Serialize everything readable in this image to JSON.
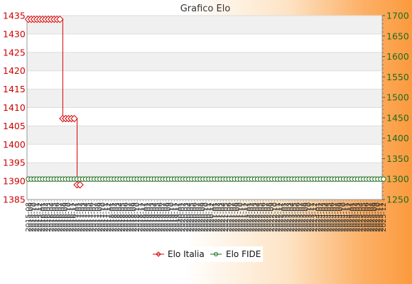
{
  "chart_data": {
    "type": "line",
    "title": "Grafico Elo",
    "x_tick_labels": [
      "2015-08",
      "2015-09",
      "2015-10",
      "2015-11",
      "2015-12",
      "2016-01",
      "2016-02",
      "2016-03",
      "2016-04",
      "2016-05",
      "2016-06",
      "2016-07",
      "2016-08",
      "2016-09",
      "2016-10",
      "2016-11",
      "2016-12",
      "2017-01",
      "2017-02",
      "2017-03",
      "2017-04",
      "2017-05",
      "2017-06",
      "2017-07",
      "2017-08",
      "2017-09",
      "2017-10",
      "2017-11",
      "2017-12",
      "2018-01",
      "2018-02",
      "2018-03",
      "2018-04",
      "2018-05",
      "2018-06",
      "2018-07",
      "2018-08",
      "2018-09",
      "2018-10",
      "2018-11",
      "2018-12",
      "2019-01",
      "2019-02",
      "2019-03",
      "2019-04",
      "2019-05",
      "2019-06",
      "2019-07",
      "2019-08",
      "2019-09",
      "2019-10",
      "2019-11",
      "2019-12",
      "2020-01",
      "2020-02",
      "2020-03",
      "2020-04",
      "2020-05",
      "2020-06",
      "2020-07",
      "2020-08",
      "2020-09",
      "2020-10",
      "2020-11",
      "2020-12",
      "2021-01",
      "2021-02",
      "2021-03",
      "2021-04",
      "2021-05",
      "2021-06",
      "2021-07",
      "2021-08",
      "2021-09",
      "2021-10",
      "2021-11",
      "2021-12",
      "2022-01",
      "2022-02",
      "2022-03",
      "2022-04",
      "2022-05",
      "2022-06",
      "2022-07",
      "2022-08",
      "2022-09",
      "2022-10",
      "2022-11",
      "2022-12",
      "2023-01",
      "2023-02",
      "2023-03",
      "2023-04",
      "2023-05",
      "2023-06",
      "2023-07",
      "2023-08",
      "2023-09",
      "2023-10",
      "2023-11",
      "2023-12",
      "2024-01",
      "2024-02",
      "2024-03",
      "2024-04",
      "2024-05",
      "2024-06",
      "2024-07",
      "2024-08",
      "2024-09",
      "2024-10",
      "2024-11",
      "2024-12",
      "2025-01",
      "2025-02",
      "2025-03",
      "2025-04",
      "2025-05",
      "2025-06",
      "2025-07",
      "2025-08",
      "2025-09",
      "2025-10",
      "2025-11",
      "2025-12"
    ],
    "y_left": {
      "min": 1385,
      "max": 1435,
      "ticks": [
        1385,
        1390,
        1395,
        1400,
        1405,
        1410,
        1415,
        1420,
        1425,
        1430,
        1435
      ]
    },
    "y_right": {
      "min": 1250,
      "max": 1700,
      "ticks": [
        1250,
        1300,
        1350,
        1400,
        1450,
        1500,
        1550,
        1600,
        1650,
        1700
      ]
    },
    "grid": true,
    "legend_position": "bottom-center",
    "series": [
      {
        "name": "Elo Italia",
        "axis": "left",
        "color": "#d40000",
        "marker": "diamond",
        "values": [
          1434,
          1434,
          1434,
          1434,
          1434,
          1434,
          1434,
          1434,
          1434,
          1434,
          1434,
          1434,
          1407,
          1407,
          1407,
          1407,
          1407,
          1389,
          1389
        ]
      },
      {
        "name": "Elo FIDE",
        "axis": "right",
        "color": "#1f6b1f",
        "marker": "circle",
        "values": [
          1300,
          1300,
          1300,
          1300,
          1300,
          1300,
          1300,
          1300,
          1300,
          1300,
          1300,
          1300,
          1300,
          1300,
          1300,
          1300,
          1300,
          1300,
          1300,
          1300,
          1300,
          1300,
          1300,
          1300,
          1300,
          1300,
          1300,
          1300,
          1300,
          1300,
          1300,
          1300,
          1300,
          1300,
          1300,
          1300,
          1300,
          1300,
          1300,
          1300,
          1300,
          1300,
          1300,
          1300,
          1300,
          1300,
          1300,
          1300,
          1300,
          1300,
          1300,
          1300,
          1300,
          1300,
          1300,
          1300,
          1300,
          1300,
          1300,
          1300,
          1300,
          1300,
          1300,
          1300,
          1300,
          1300,
          1300,
          1300,
          1300,
          1300,
          1300,
          1300,
          1300,
          1300,
          1300,
          1300,
          1300,
          1300,
          1300,
          1300,
          1300,
          1300,
          1300,
          1300,
          1300,
          1300,
          1300,
          1300,
          1300,
          1300,
          1300,
          1300,
          1300,
          1300,
          1300,
          1300,
          1300,
          1300,
          1300,
          1300,
          1300,
          1300,
          1300,
          1300,
          1300,
          1300,
          1300,
          1300,
          1300,
          1300,
          1300,
          1300,
          1300,
          1300,
          1300,
          1300,
          1300,
          1300,
          1300,
          1300,
          1300,
          1300,
          1300,
          1300,
          1300
        ]
      }
    ]
  }
}
